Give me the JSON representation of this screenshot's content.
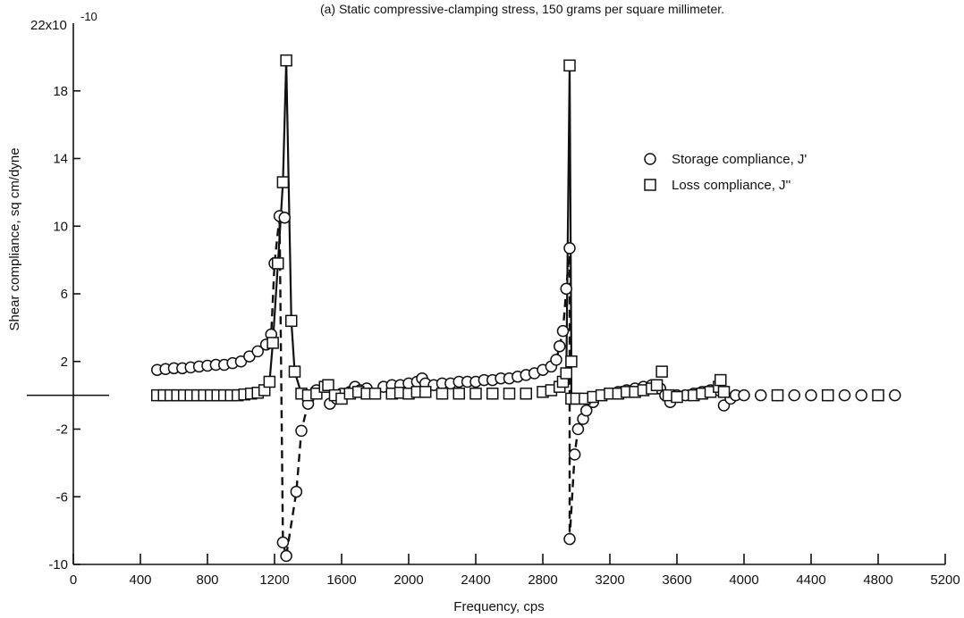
{
  "chart_data": {
    "type": "scatter",
    "title": "(a) Static compressive-clamping stress, 150 grams per square millimeter.",
    "xlabel": "Frequency, cps",
    "ylabel": "Shear compliance, sq cm/dyne",
    "y_top_label": "22x10",
    "y_exponent": "-10",
    "xlim": [
      0,
      5200
    ],
    "ylim": [
      -10,
      22
    ],
    "x_ticks": [
      0,
      400,
      800,
      1200,
      1600,
      2000,
      2400,
      2800,
      3200,
      3600,
      4000,
      4400,
      4800,
      5200
    ],
    "y_ticks": [
      -10,
      -6,
      -2,
      2,
      6,
      10,
      14,
      18
    ],
    "zero_line": true,
    "grid": false,
    "legend_position": "right",
    "series": [
      {
        "name": "Storage compliance, J'",
        "marker": "circle",
        "points": [
          [
            500,
            1.5
          ],
          [
            550,
            1.55
          ],
          [
            600,
            1.6
          ],
          [
            650,
            1.6
          ],
          [
            700,
            1.65
          ],
          [
            750,
            1.7
          ],
          [
            800,
            1.75
          ],
          [
            850,
            1.8
          ],
          [
            900,
            1.8
          ],
          [
            950,
            1.9
          ],
          [
            1000,
            2.0
          ],
          [
            1050,
            2.3
          ],
          [
            1100,
            2.6
          ],
          [
            1150,
            3.0
          ],
          [
            1180,
            3.6
          ],
          [
            1200,
            7.8
          ],
          [
            1230,
            10.6
          ],
          [
            1260,
            10.5
          ],
          [
            1250,
            -8.7
          ],
          [
            1270,
            -9.5
          ],
          [
            1330,
            -5.7
          ],
          [
            1360,
            -2.1
          ],
          [
            1400,
            -0.5
          ],
          [
            1450,
            0.3
          ],
          [
            1500,
            0.5
          ],
          [
            1530,
            -0.5
          ],
          [
            1570,
            -0.2
          ],
          [
            1600,
            0.1
          ],
          [
            1650,
            0.2
          ],
          [
            1680,
            0.5
          ],
          [
            1710,
            0.3
          ],
          [
            1750,
            0.4
          ],
          [
            1850,
            0.5
          ],
          [
            1900,
            0.6
          ],
          [
            1950,
            0.6
          ],
          [
            2000,
            0.7
          ],
          [
            2050,
            0.8
          ],
          [
            2080,
            1.0
          ],
          [
            2100,
            0.7
          ],
          [
            2150,
            0.6
          ],
          [
            2200,
            0.7
          ],
          [
            2250,
            0.7
          ],
          [
            2300,
            0.8
          ],
          [
            2350,
            0.8
          ],
          [
            2400,
            0.8
          ],
          [
            2450,
            0.9
          ],
          [
            2500,
            0.9
          ],
          [
            2550,
            1.0
          ],
          [
            2600,
            1.0
          ],
          [
            2650,
            1.1
          ],
          [
            2700,
            1.2
          ],
          [
            2750,
            1.3
          ],
          [
            2800,
            1.5
          ],
          [
            2850,
            1.7
          ],
          [
            2880,
            2.1
          ],
          [
            2900,
            2.9
          ],
          [
            2920,
            3.8
          ],
          [
            2940,
            6.3
          ],
          [
            2960,
            8.7
          ],
          [
            2960,
            -8.5
          ],
          [
            2990,
            -3.5
          ],
          [
            3010,
            -2.0
          ],
          [
            3040,
            -1.4
          ],
          [
            3060,
            -0.9
          ],
          [
            3100,
            -0.4
          ],
          [
            3150,
            0
          ],
          [
            3200,
            0.1
          ],
          [
            3250,
            0.2
          ],
          [
            3300,
            0.3
          ],
          [
            3350,
            0.4
          ],
          [
            3400,
            0.5
          ],
          [
            3450,
            0.6
          ],
          [
            3500,
            0.4
          ],
          [
            3530,
            0
          ],
          [
            3560,
            -0.4
          ],
          [
            3600,
            0
          ],
          [
            3650,
            0
          ],
          [
            3700,
            0.1
          ],
          [
            3750,
            0.2
          ],
          [
            3800,
            0.3
          ],
          [
            3850,
            0.3
          ],
          [
            3880,
            -0.6
          ],
          [
            3920,
            -0.2
          ],
          [
            3950,
            0
          ],
          [
            4000,
            0
          ],
          [
            4100,
            0
          ],
          [
            4200,
            0
          ],
          [
            4300,
            0
          ],
          [
            4400,
            0
          ],
          [
            4500,
            0
          ],
          [
            4600,
            0
          ],
          [
            4700,
            0
          ],
          [
            4800,
            0
          ],
          [
            4900,
            0
          ]
        ]
      },
      {
        "name": "Loss compliance, J''",
        "marker": "square",
        "points": [
          [
            500,
            0
          ],
          [
            540,
            0
          ],
          [
            580,
            0
          ],
          [
            620,
            0
          ],
          [
            660,
            0
          ],
          [
            700,
            0
          ],
          [
            740,
            0
          ],
          [
            780,
            0
          ],
          [
            820,
            0
          ],
          [
            860,
            0
          ],
          [
            900,
            0
          ],
          [
            940,
            0
          ],
          [
            980,
            0
          ],
          [
            1020,
            0.05
          ],
          [
            1060,
            0.1
          ],
          [
            1100,
            0.15
          ],
          [
            1140,
            0.3
          ],
          [
            1170,
            0.8
          ],
          [
            1190,
            3.1
          ],
          [
            1220,
            7.8
          ],
          [
            1250,
            12.6
          ],
          [
            1270,
            19.8
          ],
          [
            1300,
            4.4
          ],
          [
            1320,
            1.4
          ],
          [
            1360,
            0.1
          ],
          [
            1400,
            0
          ],
          [
            1450,
            0.1
          ],
          [
            1500,
            0.5
          ],
          [
            1520,
            0.6
          ],
          [
            1560,
            0
          ],
          [
            1600,
            -0.2
          ],
          [
            1650,
            0.1
          ],
          [
            1700,
            0.2
          ],
          [
            1750,
            0.1
          ],
          [
            1800,
            0.1
          ],
          [
            1900,
            0.1
          ],
          [
            1950,
            0.15
          ],
          [
            2000,
            0.1
          ],
          [
            2050,
            0.2
          ],
          [
            2100,
            0.2
          ],
          [
            2200,
            0.1
          ],
          [
            2300,
            0.1
          ],
          [
            2400,
            0.1
          ],
          [
            2500,
            0.1
          ],
          [
            2600,
            0.1
          ],
          [
            2700,
            0.1
          ],
          [
            2800,
            0.2
          ],
          [
            2850,
            0.3
          ],
          [
            2900,
            0.5
          ],
          [
            2920,
            0.8
          ],
          [
            2940,
            1.3
          ],
          [
            2960,
            19.5
          ],
          [
            2970,
            2.0
          ],
          [
            2970,
            -0.2
          ],
          [
            3000,
            -0.2
          ],
          [
            3050,
            -0.2
          ],
          [
            3100,
            -0.1
          ],
          [
            3150,
            0
          ],
          [
            3200,
            0.1
          ],
          [
            3250,
            0.1
          ],
          [
            3300,
            0.2
          ],
          [
            3350,
            0.2
          ],
          [
            3400,
            0.3
          ],
          [
            3450,
            0.4
          ],
          [
            3480,
            0.6
          ],
          [
            3510,
            1.4
          ],
          [
            3550,
            0
          ],
          [
            3600,
            -0.1
          ],
          [
            3700,
            0
          ],
          [
            3750,
            0.1
          ],
          [
            3800,
            0.2
          ],
          [
            3850,
            0.5
          ],
          [
            3860,
            0.9
          ],
          [
            3880,
            0.2
          ],
          [
            4200,
            0
          ],
          [
            4500,
            0
          ],
          [
            4800,
            0
          ]
        ]
      }
    ],
    "curves": [
      {
        "style": "solid",
        "points": [
          [
            1170,
            0.8
          ],
          [
            1190,
            3.1
          ],
          [
            1220,
            7.8
          ],
          [
            1250,
            12.6
          ],
          [
            1270,
            19.8
          ],
          [
            1300,
            4.4
          ],
          [
            1320,
            1.4
          ],
          [
            1360,
            0.1
          ]
        ]
      },
      {
        "style": "dashed",
        "points": [
          [
            1100,
            2.6
          ],
          [
            1150,
            3.0
          ],
          [
            1180,
            3.6
          ],
          [
            1200,
            7.8
          ],
          [
            1230,
            10.6
          ],
          [
            1250,
            -8.7
          ],
          [
            1270,
            -9.5
          ],
          [
            1330,
            -5.7
          ],
          [
            1360,
            -2.1
          ],
          [
            1400,
            -0.5
          ]
        ]
      },
      {
        "style": "solid",
        "points": [
          [
            2900,
            0.5
          ],
          [
            2920,
            0.8
          ],
          [
            2940,
            1.3
          ],
          [
            2960,
            19.5
          ],
          [
            2970,
            2.0
          ],
          [
            2970,
            -0.2
          ]
        ]
      },
      {
        "style": "dashed",
        "points": [
          [
            2880,
            2.1
          ],
          [
            2900,
            2.9
          ],
          [
            2920,
            3.8
          ],
          [
            2940,
            6.3
          ],
          [
            2960,
            8.7
          ],
          [
            2960,
            -8.5
          ],
          [
            2990,
            -3.5
          ],
          [
            3010,
            -2.0
          ],
          [
            3040,
            -1.4
          ]
        ]
      }
    ]
  }
}
